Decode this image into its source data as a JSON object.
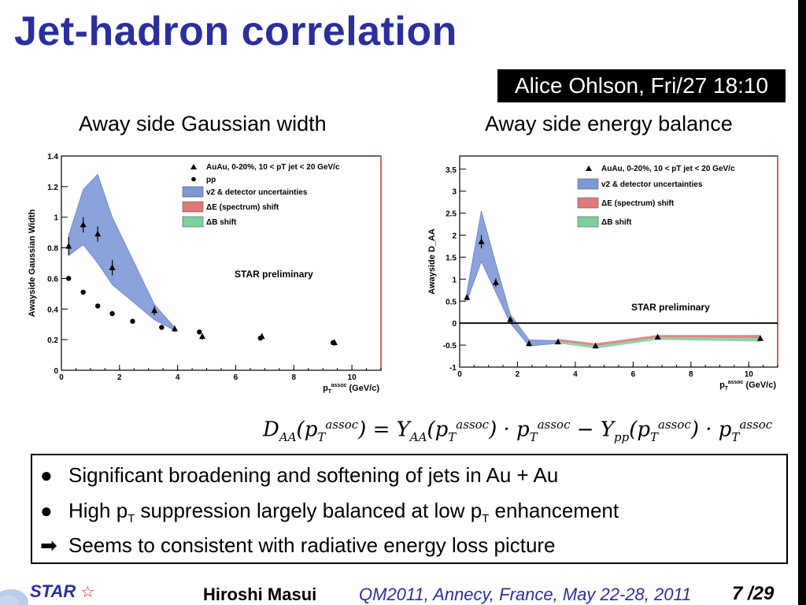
{
  "slide": {
    "title": "Jet-hadron correlation",
    "speaker_box": "Alice Ohlson, Fri/27 18:10"
  },
  "panels": {
    "left_title": "Away side Gaussian width",
    "right_title": "Away side energy balance"
  },
  "chart_data": [
    {
      "type": "scatter",
      "title": "Away side Gaussian width",
      "xlabel": "p_T^assoc (GeV/c)",
      "ylabel": "Awayside Gaussian Width",
      "xlim": [
        0,
        11
      ],
      "ylim": [
        0,
        1.4
      ],
      "xticks": [
        0,
        2,
        4,
        6,
        8,
        10
      ],
      "yticks": [
        0,
        0.2,
        0.4,
        0.6,
        0.8,
        1,
        1.2,
        1.4
      ],
      "xtick_labels": [
        "0",
        "2",
        "4",
        "6",
        "8",
        "10"
      ],
      "ytick_labels": [
        "0",
        "0.2",
        "0.4",
        "0.6",
        "0.8",
        "1",
        "1.2",
        "1.4"
      ],
      "annotation": "STAR preliminary",
      "legend": [
        {
          "label": "AuAu, 0-20%, 10 < p_T^jet < 20 GeV/c",
          "kind": "triangle",
          "color": "#000000"
        },
        {
          "label": "pp",
          "kind": "circle",
          "color": "#000000"
        },
        {
          "label": "v2 & detector uncertainties",
          "kind": "box",
          "color": "#7f98d6"
        },
        {
          "label": "ΔE (spectrum) shift",
          "kind": "box",
          "color": "#e07878"
        },
        {
          "label": "ΔB shift",
          "kind": "box",
          "color": "#7dd0a0"
        }
      ],
      "series": [
        {
          "name": "AuAu",
          "marker": "triangle",
          "x": [
            0.25,
            0.75,
            1.25,
            1.75,
            3.2,
            3.9,
            4.85,
            6.9,
            9.4
          ],
          "y": [
            0.81,
            0.95,
            0.89,
            0.67,
            0.39,
            0.27,
            0.22,
            0.22,
            0.18
          ],
          "err": [
            0.06,
            0.05,
            0.05,
            0.05,
            0.03,
            0.02,
            0.02,
            0.02,
            0.02
          ]
        },
        {
          "name": "pp",
          "marker": "circle",
          "x": [
            0.25,
            0.75,
            1.25,
            1.75,
            2.45,
            3.45,
            4.75,
            6.85,
            9.35
          ],
          "y": [
            0.6,
            0.51,
            0.42,
            0.37,
            0.32,
            0.28,
            0.25,
            0.21,
            0.18
          ],
          "err": [
            0.01,
            0.01,
            0.01,
            0.01,
            0.01,
            0.01,
            0.01,
            0.01,
            0.01
          ]
        }
      ],
      "band": {
        "name": "v2 & detector uncertainties",
        "x": [
          0.25,
          0.75,
          1.25,
          1.75,
          3.2,
          3.9
        ],
        "lower": [
          0.75,
          0.82,
          0.7,
          0.56,
          0.33,
          0.26
        ],
        "upper": [
          0.88,
          1.18,
          1.28,
          1.0,
          0.43,
          0.28
        ]
      }
    },
    {
      "type": "scatter",
      "title": "Away side energy balance",
      "xlabel": "p_T^assoc (GeV/c)",
      "ylabel": "Awayside D_AA",
      "xlim": [
        0,
        11
      ],
      "ylim": [
        -1,
        3.8
      ],
      "xticks": [
        0,
        2,
        4,
        6,
        8,
        10
      ],
      "yticks": [
        -1,
        -0.5,
        0,
        0.5,
        1,
        1.5,
        2,
        2.5,
        3,
        3.5
      ],
      "xtick_labels": [
        "0",
        "2",
        "4",
        "6",
        "8",
        "10"
      ],
      "ytick_labels": [
        "-1",
        "-0.5",
        "0",
        "0.5",
        "1",
        "1.5",
        "2",
        "2.5",
        "3",
        "3.5"
      ],
      "annotation": "STAR preliminary",
      "legend": [
        {
          "label": "AuAu, 0-20%, 10 < p_T^jet < 20 GeV/c",
          "kind": "triangle",
          "color": "#000000"
        },
        {
          "label": "v2 & detector uncertainties",
          "kind": "box",
          "color": "#7f98d6"
        },
        {
          "label": "ΔE (spectrum) shift",
          "kind": "box",
          "color": "#e07878"
        },
        {
          "label": "ΔB shift",
          "kind": "box",
          "color": "#7dd0a0"
        }
      ],
      "series": [
        {
          "name": "AuAu",
          "marker": "triangle",
          "x": [
            0.25,
            0.75,
            1.25,
            1.75,
            2.4,
            3.4,
            4.7,
            6.85,
            10.4
          ],
          "y": [
            0.58,
            1.85,
            0.92,
            0.08,
            -0.47,
            -0.43,
            -0.52,
            -0.32,
            -0.35
          ],
          "err": [
            0.05,
            0.15,
            0.1,
            0.05,
            0.05,
            0.04,
            0.05,
            0.04,
            0.04
          ]
        }
      ],
      "band": {
        "name": "v2 & detector uncertainties",
        "x": [
          0.25,
          0.75,
          1.25,
          1.75,
          2.4,
          3.4
        ],
        "lower": [
          0.5,
          1.4,
          0.7,
          0.0,
          -0.52,
          -0.46
        ],
        "upper": [
          0.7,
          2.55,
          1.35,
          0.2,
          -0.38,
          -0.4
        ]
      },
      "shift_band": {
        "x": [
          3.4,
          4.7,
          6.85,
          10.4
        ],
        "lower": [
          -0.46,
          -0.58,
          -0.38,
          -0.42
        ],
        "upper": [
          -0.36,
          -0.46,
          -0.27,
          -0.27
        ]
      }
    }
  ],
  "formula": {
    "lhs": "D",
    "lhs_sub": "AA",
    "p": "p",
    "p_sub": "T",
    "assoc": "assoc",
    "eq": "= ",
    "Y": "Y",
    "aa_sub": "AA",
    "pp_sub": "pp",
    "dot": "·",
    "minus": "−"
  },
  "bullets": [
    {
      "mark": "●",
      "text_a": "Significant broadening and softening of jets in Au + Au",
      "sub": "",
      "text_b": ""
    },
    {
      "mark": "●",
      "text_a": "High p",
      "sub": "T",
      "text_b": " suppression largely balanced at low p",
      "sub2": "T",
      "text_c": " enhancement"
    },
    {
      "mark": "➡",
      "text_a": "Seems to consistent with radiative energy loss picture",
      "sub": "",
      "text_b": ""
    }
  ],
  "footer": {
    "logo": "STAR",
    "logo_icon": "☆",
    "author": "Hiroshi Masui",
    "conference": "QM2011, Annecy, France, May 22-28, 2011",
    "page": "7 /29"
  }
}
